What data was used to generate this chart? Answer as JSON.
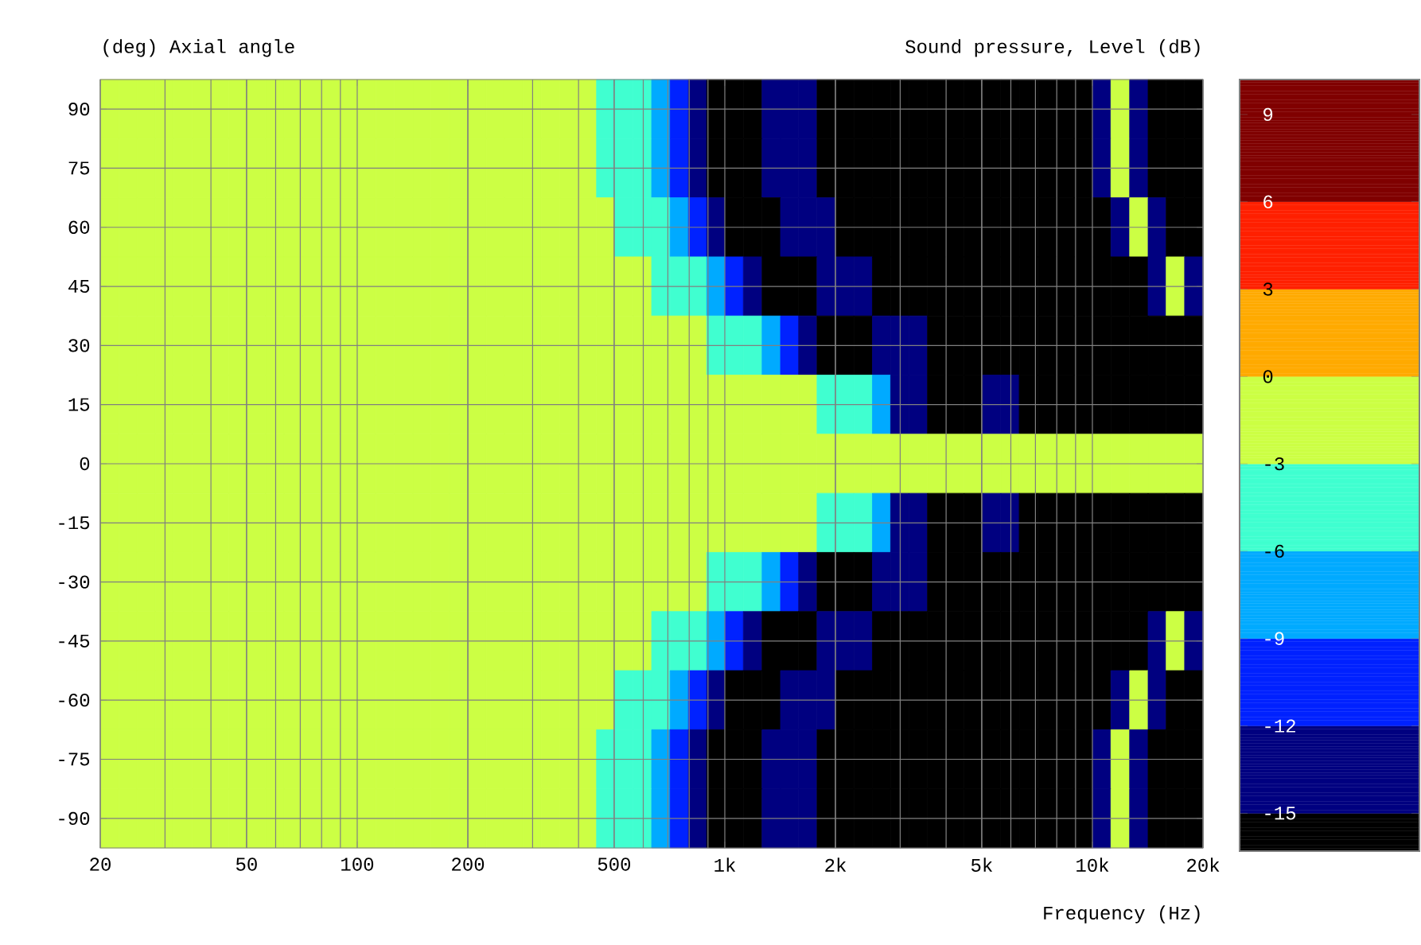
{
  "chart_data": {
    "type": "heatmap",
    "ylabel": "(deg)  Axial angle",
    "clabel": "Sound pressure, Level  (dB)",
    "xlabel": "Frequency  (Hz)",
    "log": "x",
    "grid": true,
    "xlim": [
      20,
      20000
    ],
    "xticks": [
      20,
      50,
      100,
      200,
      500,
      {
        "value": 1000,
        "label": "1k"
      },
      {
        "value": 2000,
        "label": "2k"
      },
      {
        "value": 5000,
        "label": "5k"
      },
      {
        "value": 10000,
        "label": "10k"
      },
      {
        "value": 20000,
        "label": "20k"
      }
    ],
    "clim": [
      -16.3,
      10.2
    ],
    "cticks": [
      -15,
      -12,
      -9,
      -6,
      -3,
      0,
      3,
      6,
      9
    ],
    "colors": [
      "#000000",
      "#000080",
      "#0022ff",
      "#00aaff",
      "#40ffd0",
      "#ccff44",
      "#ffaa00",
      "#ff2000",
      "#800000",
      "#800000"
    ],
    "x": [
      21.2,
      23.8,
      26.7,
      29.9,
      33.6,
      37.7,
      42.3,
      47.4,
      53.2,
      59.7,
      67.0,
      75.2,
      84.3,
      94.6,
      106,
      119,
      134,
      150,
      168,
      189,
      212,
      238,
      267,
      299,
      336,
      377,
      423,
      474,
      532,
      597,
      670,
      752,
      843,
      946,
      1060,
      1190,
      1340,
      1500,
      1680,
      1890,
      2120,
      2380,
      2670,
      2990,
      3360,
      3770,
      4230,
      4740,
      5320,
      5970,
      6700,
      7520,
      8430,
      9460,
      10600,
      11900,
      13400,
      15000,
      16800,
      18900
    ],
    "y_categories": [
      "90",
      "75",
      "60",
      "45",
      "30",
      "15",
      "0",
      "-15",
      "-30",
      "-45",
      "-60",
      "-75",
      "-90"
    ],
    "cells": [
      [
        -1.5,
        -1.5,
        -1.5,
        -1.5,
        -1.5,
        -1.5,
        -1.5,
        -1.5,
        -1.5,
        -1.5,
        -1.5,
        -1.5,
        -1.5,
        -1.5,
        -1.5,
        -1.5,
        -1.5,
        -1.5,
        -1.5,
        -1.5,
        -1.5,
        -1.5,
        -1.5,
        -1.5,
        -1.5,
        -1.5,
        -1.5,
        -4.5,
        -4.5,
        -4.5,
        -7.5,
        -10.5,
        -13.5,
        -16,
        -16,
        -16,
        -13.5,
        -13.5,
        -13.5,
        -16,
        -16,
        -16,
        -16,
        -16,
        -16,
        -16,
        -16,
        -16,
        -16,
        -16,
        -16,
        -16,
        -16,
        -16,
        -13.5,
        -1.5,
        -13.5,
        -16,
        -16,
        -16
      ],
      [
        -1.5,
        -1.5,
        -1.5,
        -1.5,
        -1.5,
        -1.5,
        -1.5,
        -1.5,
        -1.5,
        -1.5,
        -1.5,
        -1.5,
        -1.5,
        -1.5,
        -1.5,
        -1.5,
        -1.5,
        -1.5,
        -1.5,
        -1.5,
        -1.5,
        -1.5,
        -1.5,
        -1.5,
        -1.5,
        -1.5,
        -1.5,
        -4.5,
        -4.5,
        -4.5,
        -7.5,
        -10.5,
        -13.5,
        -16,
        -16,
        -16,
        -13.5,
        -13.5,
        -13.5,
        -16,
        -16,
        -16,
        -16,
        -16,
        -16,
        -16,
        -16,
        -16,
        -16,
        -16,
        -16,
        -16,
        -16,
        -16,
        -13.5,
        -1.5,
        -13.5,
        -16,
        -16,
        -16
      ],
      [
        -1.5,
        -1.5,
        -1.5,
        -1.5,
        -1.5,
        -1.5,
        -1.5,
        -1.5,
        -1.5,
        -1.5,
        -1.5,
        -1.5,
        -1.5,
        -1.5,
        -1.5,
        -1.5,
        -1.5,
        -1.5,
        -1.5,
        -1.5,
        -1.5,
        -1.5,
        -1.5,
        -1.5,
        -1.5,
        -1.5,
        -1.5,
        -1.5,
        -4.5,
        -4.5,
        -4.5,
        -7.5,
        -10.5,
        -13.5,
        -16,
        -16,
        -16,
        -13.5,
        -13.5,
        -13.5,
        -16,
        -16,
        -16,
        -16,
        -16,
        -16,
        -16,
        -16,
        -16,
        -16,
        -16,
        -16,
        -16,
        -16,
        -16,
        -13.5,
        -1.5,
        -13.5,
        -16,
        -16
      ],
      [
        -1.5,
        -1.5,
        -1.5,
        -1.5,
        -1.5,
        -1.5,
        -1.5,
        -1.5,
        -1.5,
        -1.5,
        -1.5,
        -1.5,
        -1.5,
        -1.5,
        -1.5,
        -1.5,
        -1.5,
        -1.5,
        -1.5,
        -1.5,
        -1.5,
        -1.5,
        -1.5,
        -1.5,
        -1.5,
        -1.5,
        -1.5,
        -1.5,
        -1.5,
        -1.5,
        -4.5,
        -4.5,
        -4.5,
        -7.5,
        -10.5,
        -13.5,
        -16,
        -16,
        -16,
        -13.5,
        -13.5,
        -13.5,
        -16,
        -16,
        -16,
        -16,
        -16,
        -16,
        -16,
        -16,
        -16,
        -16,
        -16,
        -16,
        -16,
        -16,
        -16,
        -13.5,
        -1.5,
        -13.5
      ],
      [
        -1.5,
        -1.5,
        -1.5,
        -1.5,
        -1.5,
        -1.5,
        -1.5,
        -1.5,
        -1.5,
        -1.5,
        -1.5,
        -1.5,
        -1.5,
        -1.5,
        -1.5,
        -1.5,
        -1.5,
        -1.5,
        -1.5,
        -1.5,
        -1.5,
        -1.5,
        -1.5,
        -1.5,
        -1.5,
        -1.5,
        -1.5,
        -1.5,
        -1.5,
        -1.5,
        -1.5,
        -1.5,
        -1.5,
        -4.5,
        -4.5,
        -4.5,
        -7.5,
        -10.5,
        -13.5,
        -16,
        -16,
        -16,
        -13.5,
        -13.5,
        -13.5,
        -16,
        -16,
        -16,
        -16,
        -16,
        -16,
        -16,
        -16,
        -16,
        -16,
        -16,
        -16,
        -16,
        -16,
        -16
      ],
      [
        -1.5,
        -1.5,
        -1.5,
        -1.5,
        -1.5,
        -1.5,
        -1.5,
        -1.5,
        -1.5,
        -1.5,
        -1.5,
        -1.5,
        -1.5,
        -1.5,
        -1.5,
        -1.5,
        -1.5,
        -1.5,
        -1.5,
        -1.5,
        -1.5,
        -1.5,
        -1.5,
        -1.5,
        -1.5,
        -1.5,
        -1.5,
        -1.5,
        -1.5,
        -1.5,
        -1.5,
        -1.5,
        -1.5,
        -1.5,
        -1.5,
        -1.5,
        -1.5,
        -1.5,
        -1.5,
        -4.5,
        -4.5,
        -4.5,
        -7.5,
        -13.5,
        -13.5,
        -16,
        -16,
        -16,
        -13.5,
        -13.5,
        -16,
        -16,
        -16,
        -16,
        -16,
        -16,
        -16,
        -16,
        -16,
        -16
      ],
      [
        -1.5,
        -1.5,
        -1.5,
        -1.5,
        -1.5,
        -1.5,
        -1.5,
        -1.5,
        -1.5,
        -1.5,
        -1.5,
        -1.5,
        -1.5,
        -1.5,
        -1.5,
        -1.5,
        -1.5,
        -1.5,
        -1.5,
        -1.5,
        -1.5,
        -1.5,
        -1.5,
        -1.5,
        -1.5,
        -1.5,
        -1.5,
        -1.5,
        -1.5,
        -1.5,
        -1.5,
        -1.5,
        -1.5,
        -1.5,
        -1.5,
        -1.5,
        -1.5,
        -1.5,
        -1.5,
        -1.5,
        -1.5,
        -1.5,
        -1.5,
        -1.5,
        -1.5,
        -1.5,
        -1.5,
        -1.5,
        -1.5,
        -1.5,
        -1.5,
        -1.5,
        -1.5,
        -1.5,
        -1.5,
        -1.5,
        -1.5,
        -1.5,
        -1.5,
        -1.5
      ],
      [
        -1.5,
        -1.5,
        -1.5,
        -1.5,
        -1.5,
        -1.5,
        -1.5,
        -1.5,
        -1.5,
        -1.5,
        -1.5,
        -1.5,
        -1.5,
        -1.5,
        -1.5,
        -1.5,
        -1.5,
        -1.5,
        -1.5,
        -1.5,
        -1.5,
        -1.5,
        -1.5,
        -1.5,
        -1.5,
        -1.5,
        -1.5,
        -1.5,
        -1.5,
        -1.5,
        -1.5,
        -1.5,
        -1.5,
        -1.5,
        -1.5,
        -1.5,
        -1.5,
        -1.5,
        -1.5,
        -4.5,
        -4.5,
        -4.5,
        -7.5,
        -13.5,
        -13.5,
        -16,
        -16,
        -16,
        -13.5,
        -13.5,
        -16,
        -16,
        -16,
        -16,
        -16,
        -16,
        -16,
        -16,
        -16,
        -16
      ],
      [
        -1.5,
        -1.5,
        -1.5,
        -1.5,
        -1.5,
        -1.5,
        -1.5,
        -1.5,
        -1.5,
        -1.5,
        -1.5,
        -1.5,
        -1.5,
        -1.5,
        -1.5,
        -1.5,
        -1.5,
        -1.5,
        -1.5,
        -1.5,
        -1.5,
        -1.5,
        -1.5,
        -1.5,
        -1.5,
        -1.5,
        -1.5,
        -1.5,
        -1.5,
        -1.5,
        -1.5,
        -1.5,
        -1.5,
        -4.5,
        -4.5,
        -4.5,
        -7.5,
        -10.5,
        -13.5,
        -16,
        -16,
        -16,
        -13.5,
        -13.5,
        -13.5,
        -16,
        -16,
        -16,
        -16,
        -16,
        -16,
        -16,
        -16,
        -16,
        -16,
        -16,
        -16,
        -16,
        -16,
        -16
      ],
      [
        -1.5,
        -1.5,
        -1.5,
        -1.5,
        -1.5,
        -1.5,
        -1.5,
        -1.5,
        -1.5,
        -1.5,
        -1.5,
        -1.5,
        -1.5,
        -1.5,
        -1.5,
        -1.5,
        -1.5,
        -1.5,
        -1.5,
        -1.5,
        -1.5,
        -1.5,
        -1.5,
        -1.5,
        -1.5,
        -1.5,
        -1.5,
        -1.5,
        -1.5,
        -1.5,
        -4.5,
        -4.5,
        -4.5,
        -7.5,
        -10.5,
        -13.5,
        -16,
        -16,
        -16,
        -13.5,
        -13.5,
        -13.5,
        -16,
        -16,
        -16,
        -16,
        -16,
        -16,
        -16,
        -16,
        -16,
        -16,
        -16,
        -16,
        -16,
        -16,
        -16,
        -13.5,
        -1.5,
        -13.5
      ],
      [
        -1.5,
        -1.5,
        -1.5,
        -1.5,
        -1.5,
        -1.5,
        -1.5,
        -1.5,
        -1.5,
        -1.5,
        -1.5,
        -1.5,
        -1.5,
        -1.5,
        -1.5,
        -1.5,
        -1.5,
        -1.5,
        -1.5,
        -1.5,
        -1.5,
        -1.5,
        -1.5,
        -1.5,
        -1.5,
        -1.5,
        -1.5,
        -1.5,
        -4.5,
        -4.5,
        -4.5,
        -7.5,
        -10.5,
        -13.5,
        -16,
        -16,
        -16,
        -13.5,
        -13.5,
        -13.5,
        -16,
        -16,
        -16,
        -16,
        -16,
        -16,
        -16,
        -16,
        -16,
        -16,
        -16,
        -16,
        -16,
        -16,
        -16,
        -13.5,
        -1.5,
        -13.5,
        -16,
        -16
      ],
      [
        -1.5,
        -1.5,
        -1.5,
        -1.5,
        -1.5,
        -1.5,
        -1.5,
        -1.5,
        -1.5,
        -1.5,
        -1.5,
        -1.5,
        -1.5,
        -1.5,
        -1.5,
        -1.5,
        -1.5,
        -1.5,
        -1.5,
        -1.5,
        -1.5,
        -1.5,
        -1.5,
        -1.5,
        -1.5,
        -1.5,
        -1.5,
        -4.5,
        -4.5,
        -4.5,
        -7.5,
        -10.5,
        -13.5,
        -16,
        -16,
        -16,
        -13.5,
        -13.5,
        -13.5,
        -16,
        -16,
        -16,
        -16,
        -16,
        -16,
        -16,
        -16,
        -16,
        -16,
        -16,
        -16,
        -16,
        -16,
        -16,
        -13.5,
        -1.5,
        -13.5,
        -16,
        -16,
        -16
      ],
      [
        -1.5,
        -1.5,
        -1.5,
        -1.5,
        -1.5,
        -1.5,
        -1.5,
        -1.5,
        -1.5,
        -1.5,
        -1.5,
        -1.5,
        -1.5,
        -1.5,
        -1.5,
        -1.5,
        -1.5,
        -1.5,
        -1.5,
        -1.5,
        -1.5,
        -1.5,
        -1.5,
        -1.5,
        -1.5,
        -1.5,
        -1.5,
        -4.5,
        -4.5,
        -4.5,
        -7.5,
        -10.5,
        -13.5,
        -16,
        -16,
        -16,
        -13.5,
        -13.5,
        -13.5,
        -16,
        -16,
        -16,
        -16,
        -16,
        -16,
        -16,
        -16,
        -16,
        -16,
        -16,
        -16,
        -16,
        -16,
        -16,
        -13.5,
        -1.5,
        -13.5,
        -16,
        -16,
        -16
      ]
    ]
  }
}
